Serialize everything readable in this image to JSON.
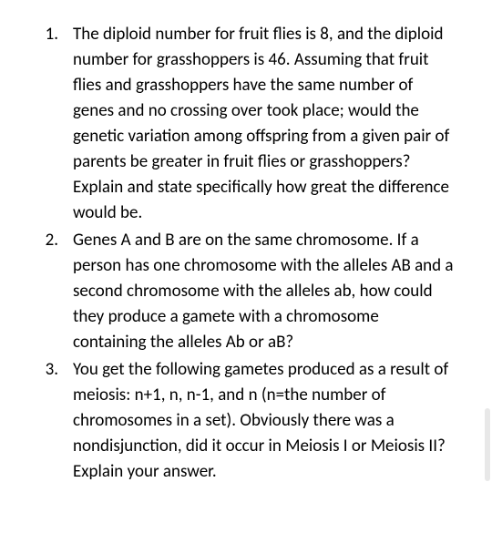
{
  "document": {
    "background_color": "#ffffff",
    "text_color": "#000000",
    "font_family": "Calibri, 'Segoe UI', Arial, sans-serif",
    "font_size": 19,
    "line_height": 28,
    "items": [
      {
        "number": "1.",
        "text": "The diploid number for fruit flies is 8, and the diploid number for grasshoppers is 46.  Assuming that fruit flies and grasshoppers have the same number of genes and no crossing over took place; would the genetic variation among offspring from a given pair of parents be greater in fruit flies or grasshoppers?  Explain and state specifically how great the difference would be."
      },
      {
        "number": "2.",
        "text": "Genes A and B are on the same chromosome.  If a person has one chromosome with the alleles AB and a second chromosome with the alleles ab, how could they produce a gamete with a chromosome containing the alleles Ab or aB?"
      },
      {
        "number": "3.",
        "text": "You get the following gametes produced as a result of meiosis: n+1, n, n-1, and n (n=the number of chromosomes in a set).  Obviously there was a nondisjunction, did it occur in Meiosis I or Meiosis II?  Explain your answer."
      }
    ]
  },
  "scroll_indicator": {
    "color": "#e8e8e8"
  }
}
